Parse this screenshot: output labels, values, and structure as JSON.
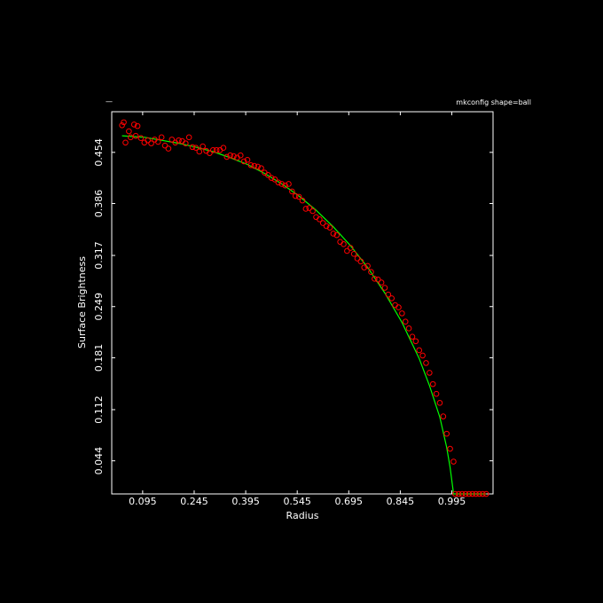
{
  "chart_data": {
    "type": "scatter",
    "title": "",
    "subtitle": "mkconfig shape=ball",
    "corner_mark": "—",
    "xlabel": "Radius",
    "ylabel": "Surface Brightness",
    "xlim": [
      0.005,
      1.115
    ],
    "ylim": [
      0.0,
      0.508
    ],
    "x_ticks": [
      0.095,
      0.245,
      0.395,
      0.545,
      0.695,
      0.845,
      0.995
    ],
    "x_tick_labels": [
      "0.095",
      "0.245",
      "0.395",
      "0.545",
      "0.695",
      "0.845",
      "0.995"
    ],
    "y_ticks": [
      0.044,
      0.112,
      0.181,
      0.249,
      0.317,
      0.386,
      0.454
    ],
    "y_tick_labels": [
      "0.044",
      "0.112",
      "0.181",
      "0.249",
      "0.317",
      "0.386",
      "0.454"
    ],
    "colors": {
      "background": "#000000",
      "axes": "#ffffff",
      "points": "#ff0000",
      "fit_line": "#00ff00"
    },
    "series": [
      {
        "kind": "points",
        "marker": "open-circle",
        "x": [
          0.035,
          0.04,
          0.045,
          0.055,
          0.06,
          0.07,
          0.075,
          0.08,
          0.09,
          0.1,
          0.11,
          0.12,
          0.13,
          0.14,
          0.15,
          0.16,
          0.17,
          0.18,
          0.19,
          0.2,
          0.21,
          0.22,
          0.23,
          0.24,
          0.25,
          0.26,
          0.27,
          0.28,
          0.29,
          0.3,
          0.31,
          0.32,
          0.33,
          0.34,
          0.35,
          0.36,
          0.37,
          0.38,
          0.39,
          0.4,
          0.41,
          0.42,
          0.43,
          0.44,
          0.45,
          0.46,
          0.47,
          0.48,
          0.49,
          0.5,
          0.51,
          0.52,
          0.53,
          0.54,
          0.55,
          0.56,
          0.57,
          0.58,
          0.59,
          0.6,
          0.61,
          0.62,
          0.63,
          0.64,
          0.65,
          0.66,
          0.67,
          0.68,
          0.69,
          0.7,
          0.71,
          0.72,
          0.73,
          0.74,
          0.75,
          0.76,
          0.77,
          0.78,
          0.79,
          0.8,
          0.81,
          0.82,
          0.83,
          0.84,
          0.85,
          0.86,
          0.87,
          0.88,
          0.89,
          0.9,
          0.91,
          0.92,
          0.93,
          0.94,
          0.95,
          0.96,
          0.97,
          0.98,
          0.99,
          1.0,
          1.005,
          1.015,
          1.025,
          1.035,
          1.045,
          1.055,
          1.065,
          1.075,
          1.085,
          1.095
        ],
        "y": [
          0.49,
          0.494,
          0.467,
          0.482,
          0.474,
          0.491,
          0.476,
          0.489,
          0.473,
          0.467,
          0.47,
          0.466,
          0.471,
          0.468,
          0.474,
          0.463,
          0.459,
          0.471,
          0.467,
          0.47,
          0.469,
          0.466,
          0.474,
          0.461,
          0.46,
          0.455,
          0.462,
          0.456,
          0.453,
          0.457,
          0.457,
          0.457,
          0.46,
          0.448,
          0.45,
          0.449,
          0.447,
          0.45,
          0.442,
          0.444,
          0.437,
          0.436,
          0.435,
          0.433,
          0.427,
          0.424,
          0.42,
          0.418,
          0.414,
          0.412,
          0.41,
          0.412,
          0.402,
          0.396,
          0.395,
          0.39,
          0.379,
          0.38,
          0.376,
          0.368,
          0.365,
          0.36,
          0.356,
          0.354,
          0.346,
          0.344,
          0.335,
          0.332,
          0.323,
          0.327,
          0.319,
          0.313,
          0.309,
          0.301,
          0.303,
          0.295,
          0.286,
          0.285,
          0.281,
          0.274,
          0.265,
          0.26,
          0.251,
          0.248,
          0.24,
          0.229,
          0.22,
          0.209,
          0.203,
          0.191,
          0.184,
          0.174,
          0.161,
          0.146,
          0.133,
          0.121,
          0.103,
          0.08,
          0.06,
          0.043,
          0.0,
          0.0,
          0.0,
          0.0,
          0.0,
          0.0,
          0.0,
          0.0,
          0.0,
          0.0
        ]
      },
      {
        "kind": "fit-line",
        "x": [
          0.035,
          0.1,
          0.15,
          0.2,
          0.25,
          0.3,
          0.35,
          0.4,
          0.45,
          0.5,
          0.55,
          0.6,
          0.65,
          0.7,
          0.75,
          0.8,
          0.85,
          0.9,
          0.93,
          0.96,
          0.98,
          0.99,
          1.0,
          1.095
        ],
        "y": [
          0.476,
          0.474,
          0.47,
          0.466,
          0.461,
          0.455,
          0.447,
          0.438,
          0.426,
          0.412,
          0.396,
          0.377,
          0.355,
          0.33,
          0.301,
          0.267,
          0.228,
          0.18,
          0.144,
          0.102,
          0.062,
          0.035,
          0.0,
          0.0
        ]
      }
    ]
  }
}
